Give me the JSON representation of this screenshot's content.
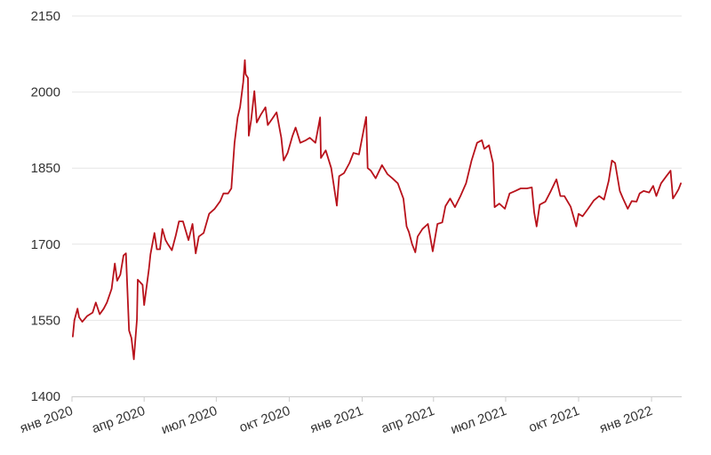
{
  "chart_data": {
    "type": "line",
    "title": "",
    "xlabel": "",
    "ylabel": "",
    "ylim": [
      1400,
      2150
    ],
    "yticks": [
      1400,
      1550,
      1700,
      1850,
      2000,
      2150
    ],
    "xlim": [
      "2020-01-01",
      "2022-02-08"
    ],
    "xticks": [
      {
        "date": "2020-01-01",
        "label": "янв 2020"
      },
      {
        "date": "2020-04-01",
        "label": "апр 2020"
      },
      {
        "date": "2020-07-01",
        "label": "июл 2020"
      },
      {
        "date": "2020-10-01",
        "label": "окт 2020"
      },
      {
        "date": "2021-01-01",
        "label": "янв 2021"
      },
      {
        "date": "2021-04-01",
        "label": "апр 2021"
      },
      {
        "date": "2021-07-01",
        "label": "июл 2021"
      },
      {
        "date": "2021-10-01",
        "label": "окт 2021"
      },
      {
        "date": "2022-01-01",
        "label": "янв 2022"
      }
    ],
    "grid": true,
    "series": [
      {
        "name": "",
        "color": "#b8121b",
        "points": [
          [
            "2020-01-02",
            1518
          ],
          [
            "2020-01-04",
            1550
          ],
          [
            "2020-01-08",
            1573
          ],
          [
            "2020-01-10",
            1556
          ],
          [
            "2020-01-14",
            1547
          ],
          [
            "2020-01-20",
            1558
          ],
          [
            "2020-01-27",
            1565
          ],
          [
            "2020-01-31",
            1585
          ],
          [
            "2020-02-05",
            1562
          ],
          [
            "2020-02-10",
            1573
          ],
          [
            "2020-02-14",
            1585
          ],
          [
            "2020-02-20",
            1612
          ],
          [
            "2020-02-24",
            1662
          ],
          [
            "2020-02-27",
            1628
          ],
          [
            "2020-03-02",
            1640
          ],
          [
            "2020-03-06",
            1678
          ],
          [
            "2020-03-09",
            1682
          ],
          [
            "2020-03-13",
            1530
          ],
          [
            "2020-03-16",
            1515
          ],
          [
            "2020-03-19",
            1473
          ],
          [
            "2020-03-23",
            1552
          ],
          [
            "2020-03-24",
            1630
          ],
          [
            "2020-03-30",
            1620
          ],
          [
            "2020-04-01",
            1580
          ],
          [
            "2020-04-07",
            1650
          ],
          [
            "2020-04-09",
            1680
          ],
          [
            "2020-04-14",
            1722
          ],
          [
            "2020-04-17",
            1690
          ],
          [
            "2020-04-21",
            1690
          ],
          [
            "2020-04-24",
            1730
          ],
          [
            "2020-04-28",
            1708
          ],
          [
            "2020-05-01",
            1700
          ],
          [
            "2020-05-06",
            1688
          ],
          [
            "2020-05-11",
            1718
          ],
          [
            "2020-05-15",
            1745
          ],
          [
            "2020-05-20",
            1745
          ],
          [
            "2020-05-27",
            1708
          ],
          [
            "2020-06-01",
            1740
          ],
          [
            "2020-06-05",
            1682
          ],
          [
            "2020-06-09",
            1715
          ],
          [
            "2020-06-15",
            1722
          ],
          [
            "2020-06-22",
            1760
          ],
          [
            "2020-06-29",
            1770
          ],
          [
            "2020-07-06",
            1785
          ],
          [
            "2020-07-10",
            1800
          ],
          [
            "2020-07-16",
            1800
          ],
          [
            "2020-07-20",
            1810
          ],
          [
            "2020-07-24",
            1900
          ],
          [
            "2020-07-28",
            1950
          ],
          [
            "2020-07-31",
            1970
          ],
          [
            "2020-08-04",
            2020
          ],
          [
            "2020-08-06",
            2063
          ],
          [
            "2020-08-07",
            2035
          ],
          [
            "2020-08-10",
            2028
          ],
          [
            "2020-08-11",
            1914
          ],
          [
            "2020-08-14",
            1945
          ],
          [
            "2020-08-18",
            2002
          ],
          [
            "2020-08-21",
            1940
          ],
          [
            "2020-08-26",
            1955
          ],
          [
            "2020-09-01",
            1970
          ],
          [
            "2020-09-04",
            1935
          ],
          [
            "2020-09-09",
            1946
          ],
          [
            "2020-09-15",
            1960
          ],
          [
            "2020-09-21",
            1910
          ],
          [
            "2020-09-24",
            1865
          ],
          [
            "2020-09-29",
            1880
          ],
          [
            "2020-10-05",
            1913
          ],
          [
            "2020-10-09",
            1930
          ],
          [
            "2020-10-15",
            1900
          ],
          [
            "2020-10-22",
            1905
          ],
          [
            "2020-10-27",
            1910
          ],
          [
            "2020-11-03",
            1900
          ],
          [
            "2020-11-09",
            1950
          ],
          [
            "2020-11-10",
            1870
          ],
          [
            "2020-11-16",
            1885
          ],
          [
            "2020-11-23",
            1850
          ],
          [
            "2020-11-30",
            1776
          ],
          [
            "2020-12-03",
            1834
          ],
          [
            "2020-12-09",
            1840
          ],
          [
            "2020-12-16",
            1860
          ],
          [
            "2020-12-21",
            1880
          ],
          [
            "2020-12-28",
            1877
          ],
          [
            "2021-01-06",
            1951
          ],
          [
            "2021-01-08",
            1850
          ],
          [
            "2021-01-12",
            1845
          ],
          [
            "2021-01-18",
            1830
          ],
          [
            "2021-01-26",
            1856
          ],
          [
            "2021-02-02",
            1838
          ],
          [
            "2021-02-08",
            1830
          ],
          [
            "2021-02-15",
            1820
          ],
          [
            "2021-02-22",
            1790
          ],
          [
            "2021-02-26",
            1735
          ],
          [
            "2021-03-01",
            1724
          ],
          [
            "2021-03-05",
            1700
          ],
          [
            "2021-03-09",
            1684
          ],
          [
            "2021-03-12",
            1715
          ],
          [
            "2021-03-18",
            1730
          ],
          [
            "2021-03-25",
            1740
          ],
          [
            "2021-03-31",
            1686
          ],
          [
            "2021-04-06",
            1740
          ],
          [
            "2021-04-12",
            1743
          ],
          [
            "2021-04-16",
            1775
          ],
          [
            "2021-04-22",
            1790
          ],
          [
            "2021-04-28",
            1773
          ],
          [
            "2021-05-05",
            1795
          ],
          [
            "2021-05-12",
            1820
          ],
          [
            "2021-05-19",
            1865
          ],
          [
            "2021-05-26",
            1900
          ],
          [
            "2021-06-01",
            1905
          ],
          [
            "2021-06-04",
            1888
          ],
          [
            "2021-06-10",
            1895
          ],
          [
            "2021-06-15",
            1860
          ],
          [
            "2021-06-17",
            1773
          ],
          [
            "2021-06-23",
            1780
          ],
          [
            "2021-06-30",
            1770
          ],
          [
            "2021-07-06",
            1800
          ],
          [
            "2021-07-13",
            1805
          ],
          [
            "2021-07-20",
            1810
          ],
          [
            "2021-07-28",
            1810
          ],
          [
            "2021-08-03",
            1812
          ],
          [
            "2021-08-06",
            1762
          ],
          [
            "2021-08-09",
            1735
          ],
          [
            "2021-08-13",
            1778
          ],
          [
            "2021-08-20",
            1784
          ],
          [
            "2021-08-27",
            1805
          ],
          [
            "2021-09-03",
            1828
          ],
          [
            "2021-09-08",
            1795
          ],
          [
            "2021-09-13",
            1795
          ],
          [
            "2021-09-21",
            1774
          ],
          [
            "2021-09-28",
            1735
          ],
          [
            "2021-10-01",
            1760
          ],
          [
            "2021-10-06",
            1755
          ],
          [
            "2021-10-13",
            1770
          ],
          [
            "2021-10-20",
            1786
          ],
          [
            "2021-10-27",
            1795
          ],
          [
            "2021-11-02",
            1788
          ],
          [
            "2021-11-08",
            1825
          ],
          [
            "2021-11-12",
            1865
          ],
          [
            "2021-11-16",
            1860
          ],
          [
            "2021-11-22",
            1805
          ],
          [
            "2021-11-26",
            1790
          ],
          [
            "2021-12-02",
            1770
          ],
          [
            "2021-12-07",
            1785
          ],
          [
            "2021-12-13",
            1784
          ],
          [
            "2021-12-17",
            1800
          ],
          [
            "2021-12-22",
            1805
          ],
          [
            "2021-12-29",
            1802
          ],
          [
            "2022-01-03",
            1815
          ],
          [
            "2022-01-07",
            1795
          ],
          [
            "2022-01-13",
            1820
          ],
          [
            "2022-01-20",
            1835
          ],
          [
            "2022-01-25",
            1845
          ],
          [
            "2022-01-28",
            1790
          ],
          [
            "2022-02-01",
            1800
          ],
          [
            "2022-02-04",
            1808
          ],
          [
            "2022-02-07",
            1820
          ]
        ]
      }
    ]
  }
}
